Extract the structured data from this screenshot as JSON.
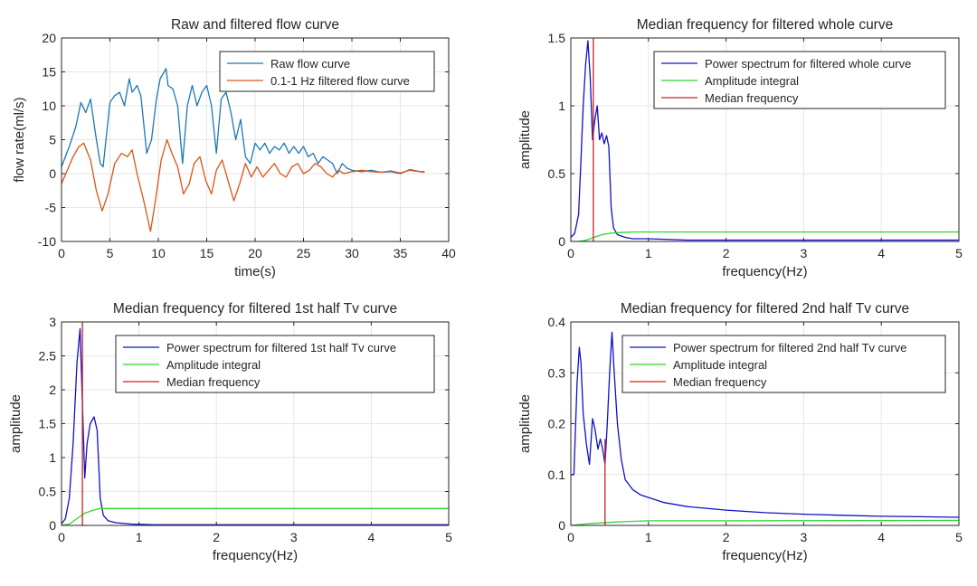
{
  "colors": {
    "raw": "#1f77b4",
    "filtered": "#d9541a",
    "power": "#1010c8",
    "integral": "#2fd42f",
    "median": "#d21f1f",
    "grid": "#e6e6e6",
    "axis": "#262626"
  },
  "chart_data": [
    {
      "type": "line",
      "title": "Raw and filtered flow curve",
      "xlabel": "time(s)",
      "ylabel": "flow rate(ml/s)",
      "xlim": [
        0,
        40
      ],
      "ylim": [
        -10,
        20
      ],
      "xticks": [
        "0",
        "5",
        "10",
        "15",
        "20",
        "25",
        "30",
        "35",
        "40"
      ],
      "yticks": [
        "-10",
        "-5",
        "0",
        "5",
        "10",
        "15",
        "20"
      ],
      "grid": true,
      "legend_position": "top-right",
      "series": [
        {
          "name": "Raw flow curve",
          "color_key": "raw",
          "x": [
            0,
            0.8,
            1.5,
            2,
            2.5,
            3,
            3.5,
            4,
            4.3,
            5,
            5.5,
            6,
            6.5,
            7,
            7.3,
            7.8,
            8.2,
            8.8,
            9.3,
            9.8,
            10.2,
            10.8,
            11,
            11.5,
            12,
            12.5,
            13,
            13.5,
            14,
            14.5,
            15,
            15.5,
            16,
            16.5,
            17,
            17.5,
            18,
            18.5,
            19,
            19.5,
            20,
            20.5,
            21,
            21.5,
            22,
            22.5,
            23,
            23.5,
            24,
            24.5,
            25,
            25.5,
            26,
            26.5,
            27,
            27.5,
            28,
            28.5,
            29,
            29.5,
            30,
            31,
            32,
            33,
            34,
            35,
            36,
            37,
            37.5
          ],
          "y": [
            1,
            4,
            7,
            10.5,
            9,
            11,
            6,
            1.5,
            1,
            10.5,
            11.5,
            12,
            10,
            14,
            12,
            13,
            11.5,
            3,
            5,
            11,
            14,
            15.5,
            13,
            12.5,
            10,
            1.5,
            10,
            13,
            10,
            12,
            13,
            10,
            3,
            11,
            12,
            9,
            5,
            8,
            2.5,
            1.5,
            4.5,
            3.5,
            4.5,
            3,
            4,
            3.5,
            4.5,
            3,
            4,
            3,
            4,
            2.5,
            3,
            1.5,
            2.5,
            2,
            1.5,
            0,
            1.5,
            0.8,
            0.5,
            0.3,
            0.5,
            0.2,
            0.3,
            0,
            0.6,
            0.3,
            0.3
          ]
        },
        {
          "name": "0.1-1 Hz filtered flow curve",
          "color_key": "filtered",
          "x": [
            0,
            0.6,
            1.2,
            1.8,
            2.3,
            3,
            3.6,
            4.2,
            4.8,
            5.5,
            6.2,
            6.8,
            7.3,
            7.8,
            8.5,
            9.2,
            9.7,
            10.3,
            10.9,
            11.4,
            12,
            12.6,
            13.2,
            13.7,
            14.3,
            14.9,
            15.5,
            16,
            16.6,
            17.2,
            17.8,
            18.4,
            19,
            19.6,
            20.2,
            20.8,
            21.4,
            22,
            22.6,
            23.2,
            23.8,
            24.4,
            25,
            25.6,
            26.2,
            26.8,
            27.4,
            28,
            28.6,
            29.2,
            30,
            31,
            32,
            33,
            34,
            35,
            36,
            37,
            37.5
          ],
          "y": [
            -1.5,
            0.5,
            2.5,
            4,
            4.5,
            2,
            -2.5,
            -5.5,
            -3,
            1.5,
            3,
            2.5,
            3.5,
            0,
            -4,
            -8.5,
            -4,
            2,
            5,
            3,
            1,
            -3,
            -1.5,
            1.5,
            2.5,
            -1,
            -3,
            0.5,
            2,
            -1,
            -4,
            -1.5,
            1.5,
            -0.5,
            1,
            -0.5,
            0.5,
            1.5,
            0,
            -0.5,
            1,
            1.5,
            0,
            0.5,
            1.5,
            1,
            0,
            -0.5,
            0.5,
            0,
            0.3,
            0.5,
            0.3,
            0.2,
            0.4,
            0.1,
            0.5,
            0.3,
            0.2
          ]
        }
      ]
    },
    {
      "type": "line",
      "title": "Median frequency for filtered whole curve",
      "xlabel": "frequency(Hz)",
      "ylabel": "amplitude",
      "xlim": [
        0,
        5
      ],
      "ylim": [
        0,
        1.5
      ],
      "xticks": [
        "0",
        "1",
        "2",
        "3",
        "4",
        "5"
      ],
      "yticks": [
        "0",
        "0.5",
        "1",
        "1.5"
      ],
      "grid": true,
      "legend_position": "top-right",
      "series": [
        {
          "name": "Power spectrum for filtered whole curve",
          "color_key": "power",
          "x": [
            0,
            0.05,
            0.1,
            0.13,
            0.16,
            0.19,
            0.22,
            0.25,
            0.28,
            0.31,
            0.34,
            0.37,
            0.4,
            0.43,
            0.46,
            0.49,
            0.52,
            0.55,
            0.6,
            0.7,
            0.8,
            1,
            1.5,
            2,
            3,
            5
          ],
          "y": [
            0.03,
            0.06,
            0.2,
            0.6,
            1.0,
            1.3,
            1.48,
            1.2,
            0.75,
            0.9,
            1.0,
            0.75,
            0.8,
            0.72,
            0.78,
            0.7,
            0.25,
            0.1,
            0.05,
            0.03,
            0.02,
            0.02,
            0.01,
            0.01,
            0.01,
            0.01
          ]
        },
        {
          "name": "Amplitude integral",
          "color_key": "integral",
          "x": [
            0,
            0.1,
            0.2,
            0.3,
            0.4,
            0.5,
            0.6,
            0.8,
            1,
            5
          ],
          "y": [
            0,
            0,
            0.01,
            0.03,
            0.05,
            0.06,
            0.065,
            0.07,
            0.07,
            0.07
          ]
        },
        {
          "name": "Median frequency",
          "color_key": "median",
          "x": [
            0.29,
            0.29
          ],
          "y": [
            0,
            1.5
          ]
        }
      ]
    },
    {
      "type": "line",
      "title": "Median frequency for filtered 1st half Tv curve",
      "xlabel": "frequency(Hz)",
      "ylabel": "amplitude",
      "xlim": [
        0,
        5
      ],
      "ylim": [
        0,
        3
      ],
      "xticks": [
        "0",
        "1",
        "2",
        "3",
        "4",
        "5"
      ],
      "yticks": [
        "0",
        "0.5",
        "1",
        "1.5",
        "2",
        "2.5",
        "3"
      ],
      "grid": true,
      "legend_position": "top-right",
      "series": [
        {
          "name": "Power spectrum for filtered 1st half Tv curve",
          "color_key": "power",
          "x": [
            0,
            0.05,
            0.1,
            0.15,
            0.2,
            0.24,
            0.27,
            0.3,
            0.33,
            0.37,
            0.42,
            0.46,
            0.5,
            0.54,
            0.6,
            0.7,
            0.9,
            1.2,
            2,
            5
          ],
          "y": [
            0.02,
            0.1,
            0.4,
            1.2,
            2.4,
            2.9,
            1.8,
            0.7,
            1.2,
            1.5,
            1.6,
            1.4,
            0.4,
            0.15,
            0.07,
            0.04,
            0.02,
            0.01,
            0.01,
            0.01
          ]
        },
        {
          "name": "Amplitude integral",
          "color_key": "integral",
          "x": [
            0,
            0.1,
            0.2,
            0.3,
            0.4,
            0.5,
            0.55,
            0.6,
            1,
            5
          ],
          "y": [
            0,
            0.02,
            0.1,
            0.18,
            0.22,
            0.25,
            0.25,
            0.25,
            0.25,
            0.25
          ]
        },
        {
          "name": "Median frequency",
          "color_key": "median",
          "x": [
            0.27,
            0.27
          ],
          "y": [
            0,
            3
          ]
        }
      ]
    },
    {
      "type": "line",
      "title": "Median frequency for filtered 2nd half Tv curve",
      "xlabel": "frequency(Hz)",
      "ylabel": "amplitude",
      "xlim": [
        0,
        5
      ],
      "ylim": [
        0,
        0.4
      ],
      "xticks": [
        "0",
        "1",
        "2",
        "3",
        "4",
        "5"
      ],
      "yticks": [
        "0",
        "0.1",
        "0.2",
        "0.3",
        "0.4"
      ],
      "grid": true,
      "legend_position": "top-right",
      "series": [
        {
          "name": "Power spectrum for filtered 2nd half Tv curve",
          "color_key": "power",
          "x": [
            0,
            0.04,
            0.08,
            0.11,
            0.13,
            0.16,
            0.2,
            0.24,
            0.28,
            0.31,
            0.35,
            0.38,
            0.41,
            0.44,
            0.47,
            0.5,
            0.53,
            0.56,
            0.6,
            0.65,
            0.7,
            0.8,
            0.9,
            1,
            1.2,
            1.5,
            2,
            2.5,
            3,
            3.5,
            4,
            4.5,
            5
          ],
          "y": [
            0.1,
            0.1,
            0.28,
            0.35,
            0.32,
            0.22,
            0.16,
            0.12,
            0.21,
            0.19,
            0.15,
            0.17,
            0.15,
            0.12,
            0.2,
            0.3,
            0.38,
            0.3,
            0.2,
            0.13,
            0.09,
            0.07,
            0.06,
            0.055,
            0.045,
            0.037,
            0.03,
            0.025,
            0.022,
            0.02,
            0.018,
            0.017,
            0.016
          ]
        },
        {
          "name": "Amplitude integral",
          "color_key": "integral",
          "x": [
            0,
            0.2,
            0.4,
            0.6,
            0.8,
            1,
            1.5,
            2,
            5
          ],
          "y": [
            0,
            0.003,
            0.005,
            0.007,
            0.008,
            0.009,
            0.009,
            0.009,
            0.01
          ]
        },
        {
          "name": "Median frequency",
          "color_key": "median",
          "x": [
            0.44,
            0.44
          ],
          "y": [
            0,
            0.17
          ]
        }
      ]
    }
  ]
}
